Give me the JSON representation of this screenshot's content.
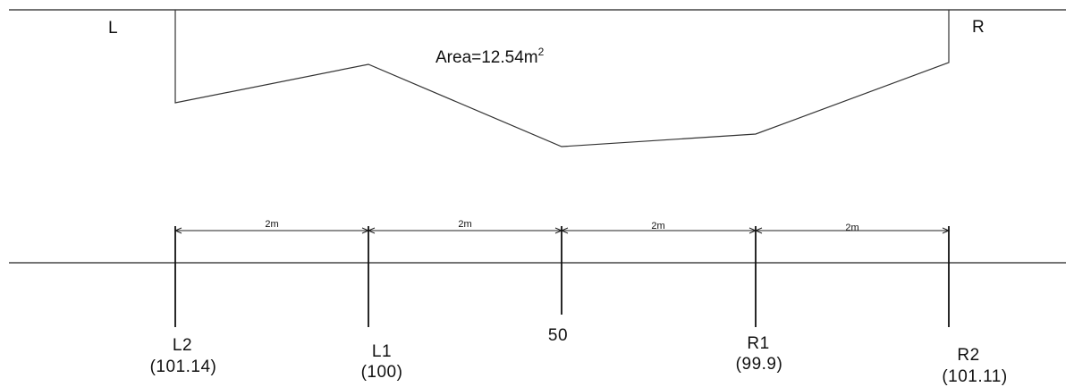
{
  "section": {
    "left_side_label": "L",
    "right_side_label": "R",
    "area_text": "Area=12.54m",
    "area_exponent": "2"
  },
  "dimensions": [
    "2m",
    "2m",
    "2m",
    "2m"
  ],
  "stations": [
    {
      "name": "L2",
      "value": "(101.14)"
    },
    {
      "name": "L1",
      "value": "(100)"
    },
    {
      "name": "50",
      "value": ""
    },
    {
      "name": "R1",
      "value": "(99.9)"
    },
    {
      "name": "R2",
      "value": "(101.11)"
    }
  ]
}
